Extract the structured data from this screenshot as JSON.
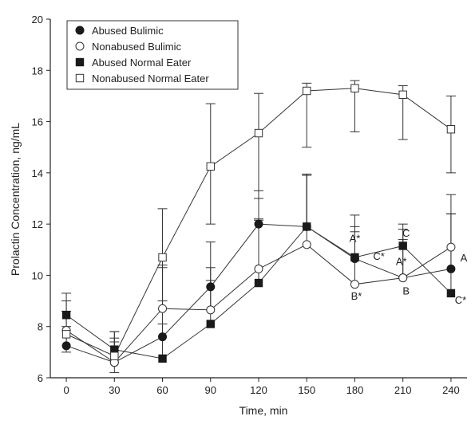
{
  "chart_data": {
    "type": "line",
    "title": "",
    "xlabel": "Time, min",
    "ylabel": "Prolactin Concentration, ng/mL",
    "x": [
      0,
      30,
      60,
      90,
      120,
      150,
      180,
      210,
      240
    ],
    "xlim": [
      -10,
      250
    ],
    "ylim": [
      6,
      20
    ],
    "xticks": [
      0,
      30,
      60,
      90,
      120,
      150,
      180,
      210,
      240
    ],
    "yticks": [
      6,
      8,
      10,
      12,
      14,
      16,
      18,
      20
    ],
    "grid": false,
    "legend_position": "top-left",
    "series": [
      {
        "name": "Abused Bulimic",
        "marker": "circle-filled",
        "values": [
          7.25,
          6.6,
          7.6,
          9.55,
          12.0,
          11.9,
          10.65,
          9.9,
          10.25
        ],
        "err_upper": [
          8.0,
          7.4,
          10.3,
          11.3,
          13.3,
          13.9,
          11.9,
          11.4,
          12.4
        ]
      },
      {
        "name": "Nonabused Bulimic",
        "marker": "circle-open",
        "values": [
          7.85,
          6.6,
          8.7,
          8.65,
          10.25,
          11.2,
          9.65,
          9.9,
          11.1
        ],
        "err_upper": [
          8.6,
          7.55,
          10.4,
          10.3,
          12.15,
          13.95,
          11.7,
          11.8,
          12.4
        ]
      },
      {
        "name": "Abused Normal Eater",
        "marker": "square-filled",
        "values": [
          8.45,
          7.1,
          6.75,
          8.1,
          9.7,
          11.9,
          10.7,
          11.15,
          9.3
        ],
        "err_upper": [
          9.3,
          7.8,
          8.1,
          9.8,
          12.2,
          13.95,
          12.35,
          12.0,
          13.15
        ]
      },
      {
        "name": "Nonabused Normal Eater",
        "marker": "square-open",
        "values": [
          7.7,
          6.85,
          10.7,
          14.25,
          15.55,
          17.2,
          17.3,
          17.05,
          15.7
        ],
        "err_upper": [
          9.0,
          7.8,
          12.6,
          16.7,
          17.1,
          17.5,
          17.6,
          17.4,
          17.0
        ],
        "err_lower": [
          7.0,
          6.2,
          9.0,
          12.0,
          13.0,
          15.0,
          15.6,
          15.3,
          14.0
        ]
      }
    ],
    "annotations": [
      {
        "text": "A*",
        "x": 180,
        "y": 11.3
      },
      {
        "text": "C*",
        "x": 195,
        "y": 10.6
      },
      {
        "text": "C",
        "x": 212,
        "y": 11.5
      },
      {
        "text": "A*",
        "x": 209,
        "y": 10.4
      },
      {
        "text": "B*",
        "x": 181,
        "y": 9.05
      },
      {
        "text": "B",
        "x": 212,
        "y": 9.25
      },
      {
        "text": "A",
        "x": 248,
        "y": 10.55
      },
      {
        "text": "C*",
        "x": 246,
        "y": 8.9
      }
    ]
  }
}
